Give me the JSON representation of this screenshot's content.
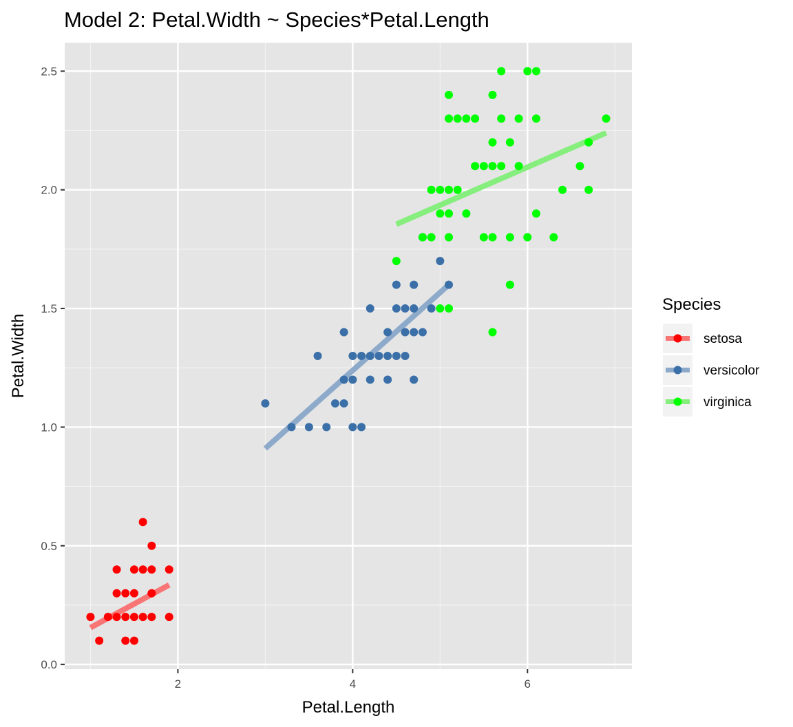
{
  "chart_data": {
    "type": "scatter",
    "title": "Model 2: Petal.Width ~ Species*Petal.Length",
    "xlabel": "Petal.Length",
    "ylabel": "Petal.Width",
    "xlim": [
      0.705,
      7.195
    ],
    "ylim": [
      -0.02,
      2.62
    ],
    "x_ticks": [
      2,
      4,
      6
    ],
    "x_tick_labels": [
      "2",
      "4",
      "6"
    ],
    "y_ticks": [
      0.0,
      0.5,
      1.0,
      1.5,
      2.0,
      2.5
    ],
    "y_tick_labels": [
      "0.0",
      "0.5",
      "1.0",
      "1.5",
      "2.0",
      "2.5"
    ],
    "grid": true,
    "panel_background": "#e5e5e5",
    "legend": {
      "title": "Species",
      "position": "right"
    },
    "series": [
      {
        "name": "setosa",
        "color": "#ff0000",
        "fit_color": "#f87575",
        "fit_line": {
          "x": [
            1.0,
            1.9
          ],
          "y": [
            0.155,
            0.335
          ]
        },
        "points": [
          [
            1.0,
            0.2
          ],
          [
            1.1,
            0.1
          ],
          [
            1.2,
            0.2
          ],
          [
            1.3,
            0.2
          ],
          [
            1.3,
            0.3
          ],
          [
            1.3,
            0.4
          ],
          [
            1.4,
            0.1
          ],
          [
            1.4,
            0.2
          ],
          [
            1.4,
            0.3
          ],
          [
            1.5,
            0.1
          ],
          [
            1.5,
            0.2
          ],
          [
            1.5,
            0.3
          ],
          [
            1.5,
            0.4
          ],
          [
            1.6,
            0.2
          ],
          [
            1.6,
            0.4
          ],
          [
            1.6,
            0.6
          ],
          [
            1.7,
            0.2
          ],
          [
            1.7,
            0.3
          ],
          [
            1.7,
            0.4
          ],
          [
            1.7,
            0.5
          ],
          [
            1.9,
            0.2
          ],
          [
            1.9,
            0.4
          ]
        ]
      },
      {
        "name": "versicolor",
        "color": "#3a6fa8",
        "fit_color": "#8eaacb",
        "fit_line": {
          "x": [
            3.0,
            5.1
          ],
          "y": [
            0.91,
            1.6
          ]
        },
        "points": [
          [
            3.0,
            1.1
          ],
          [
            3.3,
            1.0
          ],
          [
            3.5,
            1.0
          ],
          [
            3.6,
            1.3
          ],
          [
            3.7,
            1.0
          ],
          [
            3.8,
            1.1
          ],
          [
            3.9,
            1.1
          ],
          [
            3.9,
            1.2
          ],
          [
            3.9,
            1.4
          ],
          [
            4.0,
            1.0
          ],
          [
            4.0,
            1.2
          ],
          [
            4.0,
            1.3
          ],
          [
            4.1,
            1.0
          ],
          [
            4.1,
            1.3
          ],
          [
            4.2,
            1.2
          ],
          [
            4.2,
            1.3
          ],
          [
            4.2,
            1.5
          ],
          [
            4.3,
            1.3
          ],
          [
            4.4,
            1.2
          ],
          [
            4.4,
            1.3
          ],
          [
            4.4,
            1.4
          ],
          [
            4.5,
            1.3
          ],
          [
            4.5,
            1.5
          ],
          [
            4.5,
            1.6
          ],
          [
            4.6,
            1.3
          ],
          [
            4.6,
            1.4
          ],
          [
            4.6,
            1.5
          ],
          [
            4.7,
            1.2
          ],
          [
            4.7,
            1.4
          ],
          [
            4.7,
            1.5
          ],
          [
            4.7,
            1.6
          ],
          [
            4.8,
            1.4
          ],
          [
            4.8,
            1.8
          ],
          [
            4.9,
            1.5
          ],
          [
            5.0,
            1.7
          ],
          [
            5.1,
            1.6
          ]
        ]
      },
      {
        "name": "virginica",
        "color": "#00ff00",
        "fit_color": "#85ee7c",
        "fit_line": {
          "x": [
            4.5,
            6.9
          ],
          "y": [
            1.855,
            2.24
          ]
        },
        "points": [
          [
            4.5,
            1.7
          ],
          [
            4.8,
            1.8
          ],
          [
            4.9,
            1.8
          ],
          [
            4.9,
            2.0
          ],
          [
            5.0,
            1.5
          ],
          [
            5.0,
            1.9
          ],
          [
            5.0,
            2.0
          ],
          [
            5.1,
            1.5
          ],
          [
            5.1,
            1.8
          ],
          [
            5.1,
            1.9
          ],
          [
            5.1,
            2.0
          ],
          [
            5.1,
            2.3
          ],
          [
            5.1,
            2.4
          ],
          [
            5.2,
            2.0
          ],
          [
            5.2,
            2.3
          ],
          [
            5.3,
            1.9
          ],
          [
            5.3,
            2.3
          ],
          [
            5.4,
            2.1
          ],
          [
            5.4,
            2.3
          ],
          [
            5.5,
            1.8
          ],
          [
            5.5,
            2.1
          ],
          [
            5.6,
            1.4
          ],
          [
            5.6,
            1.8
          ],
          [
            5.6,
            2.1
          ],
          [
            5.6,
            2.2
          ],
          [
            5.6,
            2.4
          ],
          [
            5.7,
            2.1
          ],
          [
            5.7,
            2.3
          ],
          [
            5.7,
            2.5
          ],
          [
            5.8,
            1.6
          ],
          [
            5.8,
            1.8
          ],
          [
            5.8,
            2.2
          ],
          [
            5.9,
            2.1
          ],
          [
            5.9,
            2.3
          ],
          [
            6.0,
            1.8
          ],
          [
            6.0,
            2.5
          ],
          [
            6.1,
            1.9
          ],
          [
            6.1,
            2.3
          ],
          [
            6.1,
            2.5
          ],
          [
            6.3,
            1.8
          ],
          [
            6.4,
            2.0
          ],
          [
            6.6,
            2.1
          ],
          [
            6.7,
            2.0
          ],
          [
            6.7,
            2.2
          ],
          [
            6.9,
            2.3
          ]
        ]
      }
    ]
  }
}
